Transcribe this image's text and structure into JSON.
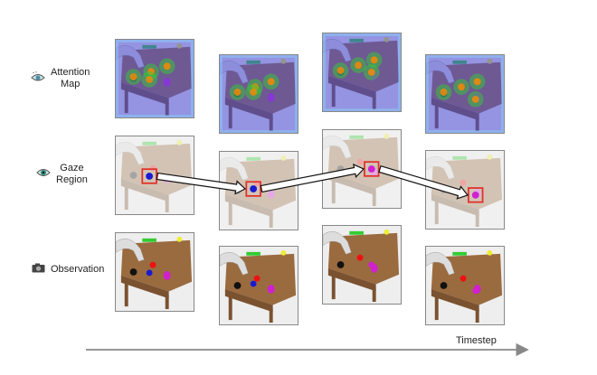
{
  "rows": [
    {
      "label_lines": [
        "Attention",
        "Map"
      ],
      "icon": "eye-sparkle-icon",
      "kind": "attention"
    },
    {
      "label_lines": [
        "Gaze",
        "Region"
      ],
      "icon": "eye-icon",
      "kind": "gaze"
    },
    {
      "label_lines": [
        "Observation"
      ],
      "icon": "camera-icon",
      "kind": "observation"
    }
  ],
  "timesteps": 4,
  "axis_label": "Timestep",
  "colors": {
    "gaze_box": "#e0312b",
    "axis": "#888888",
    "table": "#9a6b3f"
  }
}
